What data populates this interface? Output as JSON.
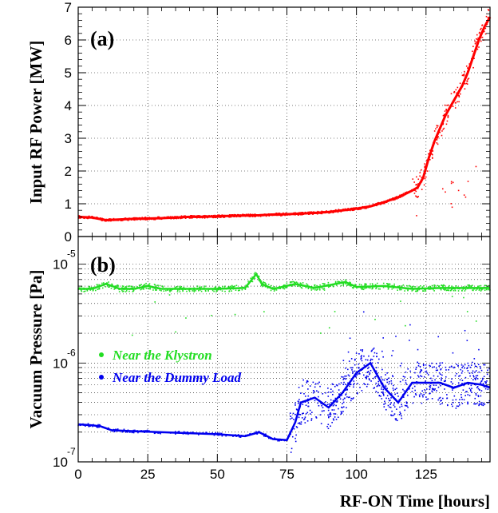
{
  "chart_data": [
    {
      "type": "scatter",
      "panel_label": "(a)",
      "ylabel": "Input RF Power [MW]",
      "xlim": [
        0,
        148
      ],
      "ylim": [
        0,
        7
      ],
      "yticks": [
        "0",
        "1",
        "2",
        "3",
        "4",
        "5",
        "6",
        "7"
      ],
      "grid": true,
      "series": [
        {
          "color": "#ff0000",
          "x": [
            0,
            5,
            10,
            15,
            20,
            25,
            30,
            35,
            40,
            45,
            50,
            55,
            60,
            65,
            70,
            75,
            80,
            85,
            90,
            95,
            100,
            105,
            110,
            115,
            120,
            122,
            124,
            126,
            128,
            130,
            132,
            134,
            136,
            138,
            140,
            142,
            144,
            146,
            148
          ],
          "y": [
            0.6,
            0.58,
            0.5,
            0.52,
            0.54,
            0.55,
            0.56,
            0.58,
            0.6,
            0.6,
            0.62,
            0.63,
            0.64,
            0.65,
            0.67,
            0.68,
            0.7,
            0.72,
            0.75,
            0.8,
            0.85,
            0.92,
            1.05,
            1.2,
            1.4,
            1.5,
            1.8,
            2.4,
            2.9,
            3.3,
            3.7,
            4.0,
            4.3,
            4.6,
            5.0,
            5.5,
            6.0,
            6.4,
            6.7
          ]
        }
      ]
    },
    {
      "type": "scatter",
      "panel_label": "(b)",
      "ylabel": "Vacuum Pressure [Pa]",
      "xlabel": "RF-ON Time   [hours]",
      "xlim": [
        0,
        148
      ],
      "ylim_exponent": [
        -7,
        -4.72
      ],
      "log_scale": true,
      "yticks": [
        {
          "base": "10",
          "exp": "-7"
        },
        {
          "base": "10",
          "exp": "-6"
        },
        {
          "base": "10",
          "exp": "-5"
        }
      ],
      "xticks": [
        "0",
        "25",
        "50",
        "75",
        "100",
        "125"
      ],
      "xtick_values": [
        0,
        25,
        50,
        75,
        100,
        125
      ],
      "grid": true,
      "series": [
        {
          "name": "Near the Klystron",
          "color": "#22dd22",
          "x": [
            0,
            5,
            10,
            15,
            20,
            25,
            30,
            40,
            50,
            60,
            64,
            66,
            70,
            78,
            85,
            96,
            100,
            110,
            120,
            130,
            140,
            148
          ],
          "y_exponent": [
            -5.25,
            -5.25,
            -5.2,
            -5.25,
            -5.25,
            -5.22,
            -5.25,
            -5.25,
            -5.25,
            -5.24,
            -5.1,
            -5.2,
            -5.25,
            -5.2,
            -5.24,
            -5.18,
            -5.23,
            -5.22,
            -5.25,
            -5.24,
            -5.24,
            -5.24
          ]
        },
        {
          "name": "Near the Dummy Load",
          "color": "#0000ee",
          "x": [
            0,
            5,
            8,
            10,
            12,
            20,
            30,
            40,
            50,
            60,
            65,
            70,
            75,
            78,
            80,
            85,
            90,
            95,
            100,
            105,
            110,
            115,
            120,
            125,
            130,
            135,
            140,
            145,
            148
          ],
          "y_exponent": [
            -6.62,
            -6.63,
            -6.64,
            -6.66,
            -6.68,
            -6.69,
            -6.7,
            -6.71,
            -6.72,
            -6.74,
            -6.7,
            -6.77,
            -6.78,
            -6.6,
            -6.4,
            -6.35,
            -6.45,
            -6.3,
            -6.1,
            -6.0,
            -6.25,
            -6.4,
            -6.2,
            -6.2,
            -6.2,
            -6.25,
            -6.2,
            -6.22,
            -6.25
          ]
        }
      ]
    }
  ]
}
